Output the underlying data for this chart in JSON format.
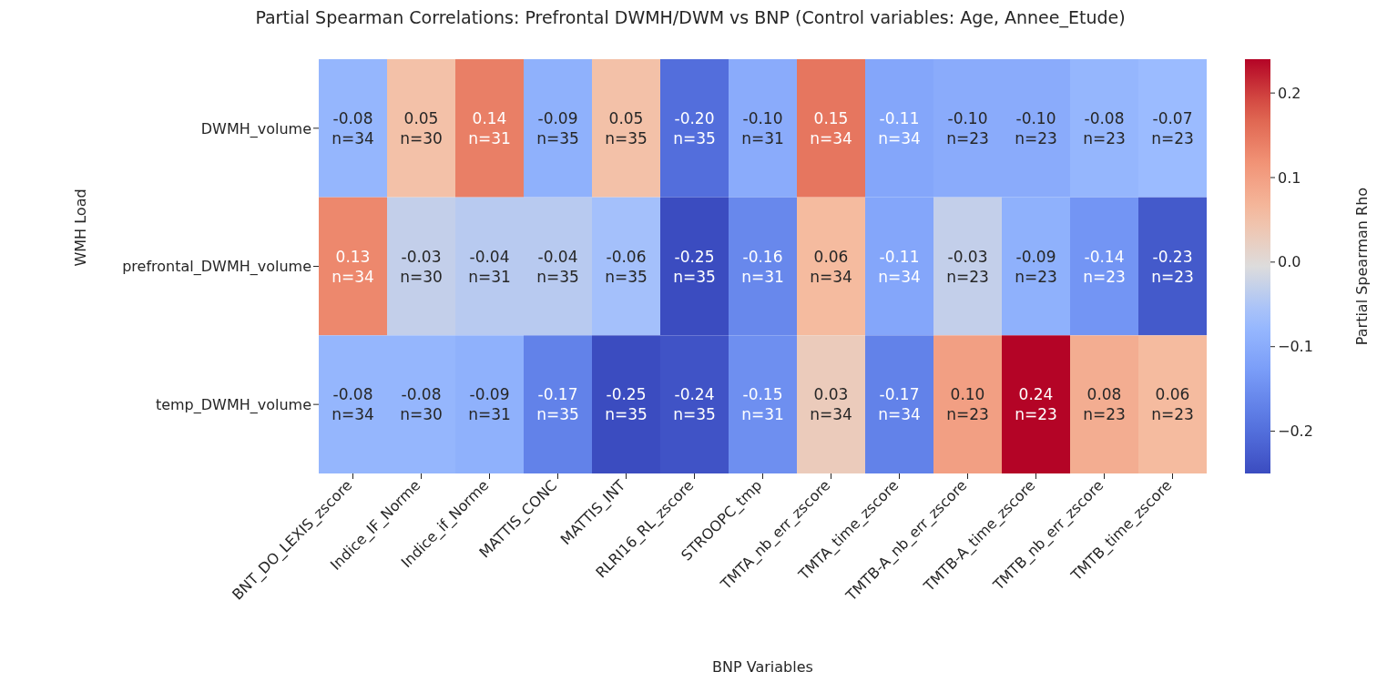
{
  "chart_data": {
    "type": "heatmap",
    "title": "Partial Spearman Correlations: Prefrontal DWMH/DWM vs BNP (Control variables: Age, Annee_Etude)",
    "xlabel": "BNP Variables",
    "ylabel": "WMH Load",
    "clabel": "Partial Spearman Rho",
    "categories": [
      "BNT_DO_LEXIS_zscore",
      "Indice_IF_Norme",
      "Indice_if_Norme",
      "MATTIS_CONC",
      "MATTIS_INT",
      "RLRI16_RL_zscore",
      "STROOPC_tmp",
      "TMTA_nb_err_zscore",
      "TMTA_time_zscore",
      "TMTB-A_nb_err_zscore",
      "TMTB-A_time_zscore",
      "TMTB_nb_err_zscore",
      "TMTB_time_zscore"
    ],
    "y_categories": [
      "DWMH_volume",
      "prefrontal_DWMH_volume",
      "temp_DWMH_volume"
    ],
    "cells": [
      [
        -0.08,
        0.05,
        0.14,
        -0.09,
        0.05,
        -0.2,
        -0.1,
        0.15,
        -0.11,
        -0.1,
        -0.1,
        -0.08,
        -0.07
      ],
      [
        0.13,
        -0.03,
        -0.04,
        -0.04,
        -0.06,
        -0.25,
        -0.16,
        0.06,
        -0.11,
        -0.03,
        -0.09,
        -0.14,
        -0.23
      ],
      [
        -0.08,
        -0.08,
        -0.09,
        -0.17,
        -0.25,
        -0.24,
        -0.15,
        0.03,
        -0.17,
        0.1,
        0.24,
        0.08,
        0.06
      ]
    ],
    "cell_labels": [
      [
        "-0.08\nn=34",
        "0.05\nn=30",
        "0.14\nn=31",
        "-0.09\nn=35",
        "0.05\nn=35",
        "-0.20\nn=35",
        "-0.10\nn=31",
        "0.15\nn=34",
        "-0.11\nn=34",
        "-0.10\nn=23",
        "-0.10\nn=23",
        "-0.08\nn=23",
        "-0.07\nn=23"
      ],
      [
        "0.13\nn=34",
        "-0.03\nn=30",
        "-0.04\nn=31",
        "-0.04\nn=35",
        "-0.06\nn=35",
        "-0.25\nn=35",
        "-0.16\nn=31",
        "0.06\nn=34",
        "-0.11\nn=34",
        "-0.03\nn=23",
        "-0.09\nn=23",
        "-0.14\nn=23",
        "-0.23\nn=23"
      ],
      [
        "-0.08\nn=34",
        "-0.08\nn=30",
        "-0.09\nn=31",
        "-0.17\nn=35",
        "-0.25\nn=35",
        "-0.24\nn=35",
        "-0.15\nn=31",
        "0.03\nn=34",
        "-0.17\nn=34",
        "0.10\nn=23",
        "0.24\nn=23",
        "0.08\nn=23",
        "0.06\nn=23"
      ]
    ],
    "clim": [
      -0.25,
      0.24
    ],
    "cticks": [
      {
        "value": -0.2,
        "label": "−0.2"
      },
      {
        "value": -0.1,
        "label": "−0.1"
      },
      {
        "value": 0,
        "label": "0.0"
      },
      0.1,
      0.2
    ]
  }
}
